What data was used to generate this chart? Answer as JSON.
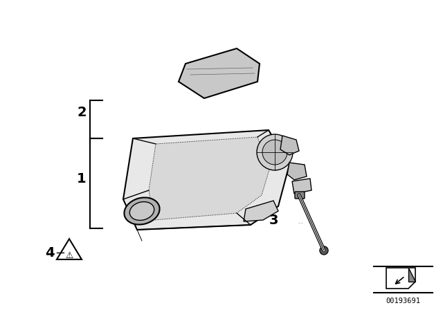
{
  "bg_color": "#ffffff",
  "label_1": "1",
  "label_2": "2",
  "label_3": "3",
  "label_4": "4",
  "part_number": "00193691",
  "label_fontsize": 14,
  "annotation_fontsize": 9,
  "figsize": [
    6.4,
    4.48
  ],
  "dpi": 100
}
